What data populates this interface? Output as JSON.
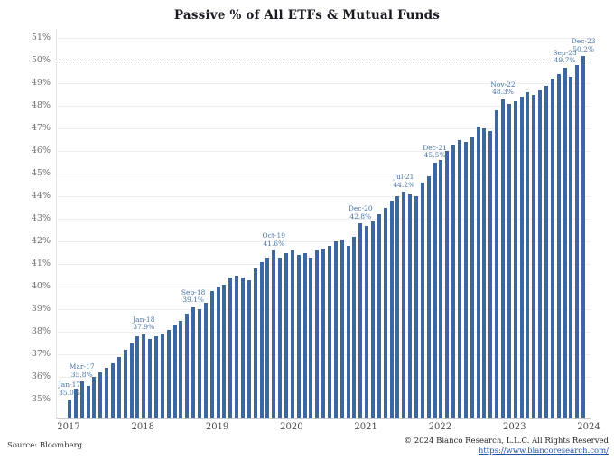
{
  "chart_data": {
    "type": "bar",
    "title": "Passive % of All ETFs & Mutual Funds",
    "x_start": "Jan-2017",
    "x_end": "Dec-2023",
    "frequency": "monthly",
    "values": [
      35.0,
      35.5,
      35.8,
      35.6,
      36.0,
      36.2,
      36.4,
      36.6,
      36.9,
      37.2,
      37.5,
      37.8,
      37.9,
      37.7,
      37.8,
      37.9,
      38.1,
      38.3,
      38.5,
      38.8,
      39.1,
      39.0,
      39.3,
      39.8,
      40.0,
      40.1,
      40.4,
      40.5,
      40.4,
      40.3,
      40.8,
      41.1,
      41.3,
      41.6,
      41.3,
      41.5,
      41.6,
      41.4,
      41.5,
      41.3,
      41.6,
      41.7,
      41.8,
      42.0,
      42.1,
      41.8,
      42.2,
      42.8,
      42.7,
      42.9,
      43.2,
      43.5,
      43.8,
      44.0,
      44.2,
      44.1,
      44.0,
      44.6,
      44.9,
      45.5,
      45.6,
      46.0,
      46.3,
      46.5,
      46.4,
      46.6,
      47.1,
      47.0,
      46.9,
      47.8,
      48.3,
      48.1,
      48.2,
      48.4,
      48.6,
      48.5,
      48.7,
      48.9,
      49.2,
      49.4,
      49.7,
      49.3,
      49.8,
      50.2
    ],
    "ylim": [
      34.2,
      51.4
    ],
    "yticks": [
      35,
      36,
      37,
      38,
      39,
      40,
      41,
      42,
      43,
      44,
      45,
      46,
      47,
      48,
      49,
      50,
      51
    ],
    "ytick_suffix": "%",
    "xticks": [
      "2017",
      "2018",
      "2019",
      "2020",
      "2021",
      "2022",
      "2023",
      "2024"
    ],
    "grid": "horizontal-light",
    "legend": "none",
    "reference_line": {
      "value": 50,
      "style": "dotted"
    },
    "bar_color": "#3e689c",
    "annotation_color": "#4673a6",
    "annotations": [
      {
        "index": 0,
        "label": "Jan-17",
        "value_label": "35.0%"
      },
      {
        "index": 2,
        "label": "Mar-17",
        "value_label": "35.8%"
      },
      {
        "index": 12,
        "label": "Jan-18",
        "value_label": "37.9%"
      },
      {
        "index": 20,
        "label": "Sep-18",
        "value_label": "39.1%"
      },
      {
        "index": 33,
        "label": "Oct-19",
        "value_label": "41.6%"
      },
      {
        "index": 47,
        "label": "Dec-20",
        "value_label": "42.8%"
      },
      {
        "index": 54,
        "label": "Jul-21",
        "value_label": "44.2%"
      },
      {
        "index": 59,
        "label": "Dec-21",
        "value_label": "45.5%"
      },
      {
        "index": 70,
        "label": "Nov-22",
        "value_label": "48.3%"
      },
      {
        "index": 80,
        "label": "Sep-23",
        "value_label": "49.7%"
      },
      {
        "index": 83,
        "label": "Dec-23",
        "value_label": "50.2%"
      }
    ]
  },
  "footer": {
    "source": "Source: Bloomberg",
    "copyright": "© 2024 Bianco Research, L.L.C. All Rights Reserved",
    "website": "https://www.biancoresearch.com/"
  }
}
